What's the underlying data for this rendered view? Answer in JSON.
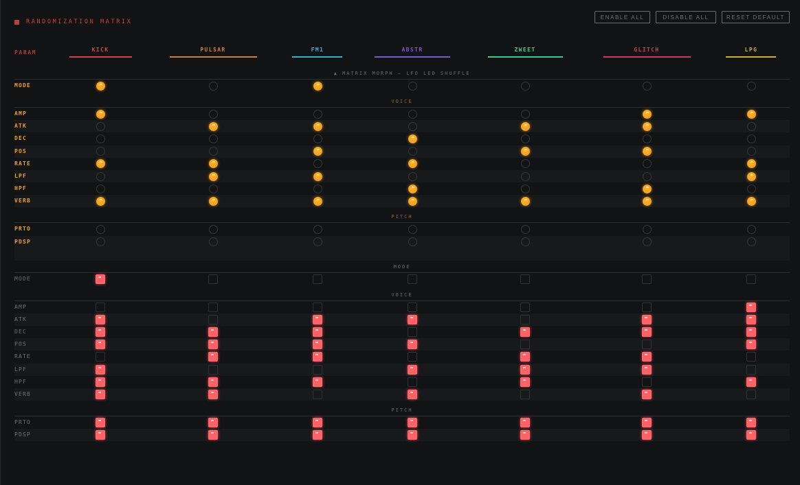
{
  "header": {
    "title": "RANDOMIZATION MATRIX",
    "buttons": {
      "enable_all": "ENABLE ALL",
      "disable_all": "DISABLE ALL",
      "reset_default": "RESET DEFAULT"
    }
  },
  "param_header": "PARAM",
  "columns": [
    {
      "label": "KICK",
      "color": "#c94a4a"
    },
    {
      "label": "PULSAR",
      "color": "#c9824a"
    },
    {
      "label": "FM1",
      "color": "#3fb0c9"
    },
    {
      "label": "ABSTR",
      "color": "#7a5cc9"
    },
    {
      "label": "ZWEET",
      "color": "#3fc98a"
    },
    {
      "label": "GLITCH",
      "color": "#c93f5f"
    },
    {
      "label": "LPG",
      "color": "#c9b03f"
    }
  ],
  "groups": [
    {
      "style": "led",
      "label_color": "#e8a030",
      "sections": [
        {
          "title": "▲ MATRIX MORPH — LFO LED SHUFFLE",
          "title_color": "#6a6b6e",
          "rows": [
            {
              "param": "MODE",
              "values": [
                1,
                0,
                1,
                0,
                0,
                0,
                0
              ]
            }
          ]
        },
        {
          "title": "VOICE",
          "title_color": "#8a6a2a",
          "rows": [
            {
              "param": "AMP",
              "values": [
                1,
                0,
                0,
                0,
                0,
                1,
                1
              ]
            },
            {
              "param": "ATK",
              "values": [
                0,
                1,
                1,
                0,
                1,
                1,
                0
              ]
            },
            {
              "param": "DEC",
              "values": [
                0,
                0,
                0,
                1,
                0,
                0,
                0
              ]
            },
            {
              "param": "POS",
              "values": [
                0,
                0,
                1,
                0,
                1,
                1,
                0
              ]
            },
            {
              "param": "RATE",
              "values": [
                1,
                1,
                0,
                1,
                0,
                0,
                1
              ]
            },
            {
              "param": "LPF",
              "values": [
                0,
                1,
                1,
                0,
                0,
                0,
                1
              ]
            },
            {
              "param": "HPF",
              "values": [
                0,
                0,
                0,
                1,
                0,
                1,
                0
              ]
            },
            {
              "param": "VERB",
              "values": [
                1,
                1,
                1,
                1,
                1,
                1,
                1
              ]
            }
          ]
        },
        {
          "title": "PITCH",
          "title_color": "#8a6a2a",
          "rows": [
            {
              "param": "PRTO",
              "values": [
                0,
                0,
                0,
                0,
                0,
                0,
                0
              ]
            },
            {
              "param": "PDSP",
              "values": [
                0,
                0,
                0,
                0,
                0,
                0,
                0
              ]
            }
          ]
        }
      ]
    },
    {
      "style": "pad",
      "label_color": "#6f7073",
      "sections": [
        {
          "title": "MODE",
          "title_color": "#6a6b6e",
          "rows": [
            {
              "param": "MODE",
              "values": [
                1,
                0,
                0,
                0,
                0,
                0,
                0
              ]
            }
          ]
        },
        {
          "title": "VOICE",
          "title_color": "#6a6b6e",
          "rows": [
            {
              "param": "AMP",
              "values": [
                0,
                0,
                0,
                0,
                0,
                0,
                1
              ]
            },
            {
              "param": "ATK",
              "values": [
                1,
                0,
                1,
                1,
                0,
                1,
                1
              ]
            },
            {
              "param": "DEC",
              "values": [
                1,
                1,
                1,
                0,
                1,
                1,
                1
              ]
            },
            {
              "param": "POS",
              "values": [
                1,
                1,
                1,
                1,
                0,
                0,
                1
              ]
            },
            {
              "param": "RATE",
              "values": [
                0,
                1,
                1,
                0,
                1,
                1,
                0
              ]
            },
            {
              "param": "LPF",
              "values": [
                1,
                0,
                0,
                1,
                1,
                1,
                0
              ]
            },
            {
              "param": "HPF",
              "values": [
                1,
                1,
                1,
                0,
                1,
                0,
                1
              ]
            },
            {
              "param": "VERB",
              "values": [
                1,
                1,
                0,
                1,
                0,
                1,
                0
              ]
            }
          ]
        },
        {
          "title": "PITCH",
          "title_color": "#6a6b6e",
          "rows": [
            {
              "param": "PRTO",
              "values": [
                1,
                1,
                1,
                1,
                1,
                1,
                1
              ]
            },
            {
              "param": "PDSP",
              "values": [
                1,
                1,
                1,
                1,
                1,
                1,
                1
              ]
            }
          ]
        }
      ]
    }
  ]
}
